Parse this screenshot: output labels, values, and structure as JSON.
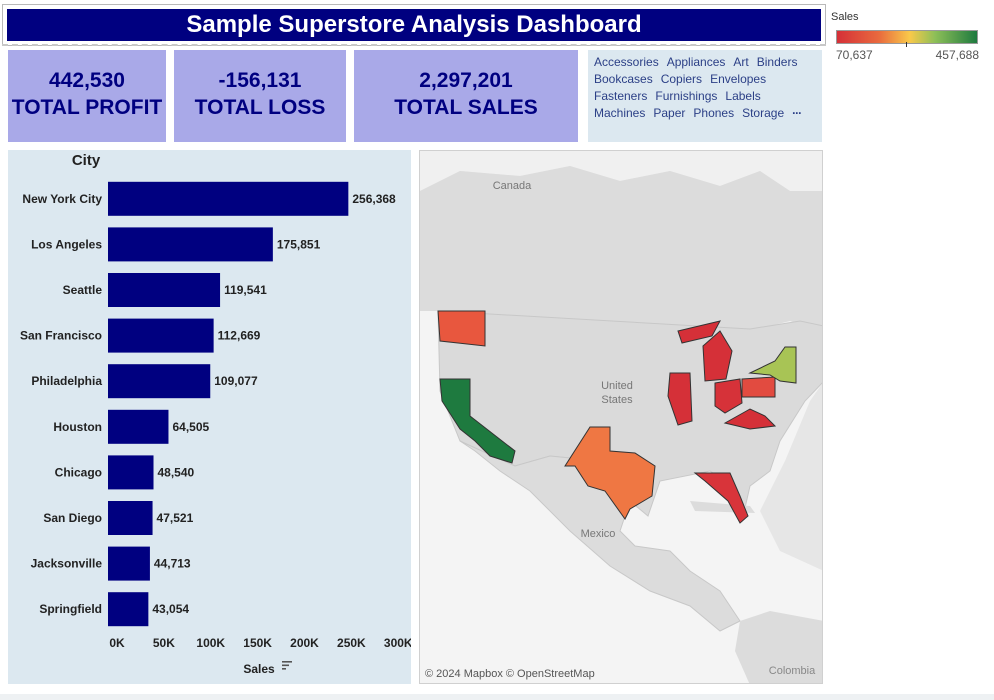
{
  "title": "Sample Superstore Analysis Dashboard",
  "kpis": [
    {
      "value": "442,530",
      "label": "TOTAL PROFIT"
    },
    {
      "value": "-156,131",
      "label": "TOTAL LOSS"
    },
    {
      "value": "2,297,201",
      "label": "TOTAL SALES"
    }
  ],
  "filter": {
    "rows": [
      [
        "Accessories",
        "Appliances",
        "Art",
        "Binders"
      ],
      [
        "Bookcases",
        "Copiers",
        "Envelopes"
      ],
      [
        "Fasteners",
        "Furnishings",
        "Labels"
      ],
      [
        "Machines",
        "Paper",
        "Phones",
        "Storage"
      ]
    ],
    "more": "···",
    "text_color": "#2b3f86"
  },
  "legend": {
    "title": "Sales",
    "min": "70,637",
    "max": "457,688"
  },
  "map": {
    "labels": {
      "canada": "Canada",
      "us_line1": "United",
      "us_line2": "States",
      "mexico": "Mexico",
      "colombia": "Colombia"
    },
    "attribution": "© 2024 Mapbox © OpenStreetMap",
    "state_colors": {
      "california": "#1e7a3f",
      "new_york": "#a8c455",
      "texas": "#ef7743",
      "washington": "#e8573e",
      "pennsylvania": "#e24b40",
      "florida": "#d8343a",
      "illinois": "#d53038",
      "ohio": "#d63239",
      "michigan": "#d53038",
      "virginia": "#d53038"
    }
  },
  "chart_data": {
    "type": "bar",
    "orientation": "horizontal",
    "title": "City",
    "xlabel": "Sales",
    "categories": [
      "New York City",
      "Los Angeles",
      "Seattle",
      "San Francisco",
      "Philadelphia",
      "Houston",
      "Chicago",
      "San Diego",
      "Jacksonville",
      "Springfield"
    ],
    "values": [
      256368,
      175851,
      119541,
      112669,
      109077,
      64505,
      48540,
      47521,
      44713,
      43054
    ],
    "value_labels": [
      "256,368",
      "175,851",
      "119,541",
      "112,669",
      "109,077",
      "64,505",
      "48,540",
      "47,521",
      "44,713",
      "43,054"
    ],
    "xticks": [
      0,
      50000,
      100000,
      150000,
      200000,
      250000,
      300000
    ],
    "xtick_labels": [
      "0K",
      "50K",
      "100K",
      "150K",
      "200K",
      "250K",
      "300K"
    ],
    "xlim": [
      0,
      320000
    ],
    "bar_color": "#000080",
    "grid": false
  }
}
